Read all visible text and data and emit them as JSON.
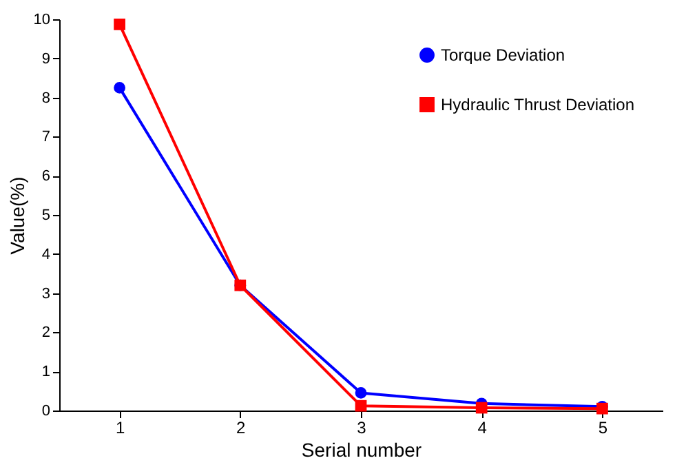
{
  "chart_data": {
    "type": "line",
    "xlabel": "Serial number",
    "ylabel": "Value(%)",
    "categories": [
      "1",
      "2",
      "3",
      "4",
      "5"
    ],
    "series": [
      {
        "name": "Torque Deviation",
        "color": "#0000ff",
        "marker": "circle",
        "values": [
          8.25,
          3.2,
          0.45,
          0.18,
          0.1
        ]
      },
      {
        "name": "Hydraulic Thrust Deviation",
        "color": "#ff0000",
        "marker": "square",
        "values": [
          9.87,
          3.2,
          0.12,
          0.07,
          0.05
        ]
      }
    ],
    "ylim": [
      0,
      10
    ],
    "yticks": [
      0,
      1,
      2,
      3,
      4,
      5,
      6,
      7,
      8,
      9,
      10
    ],
    "grid": false,
    "legend": "top right",
    "line_style": "solid"
  }
}
